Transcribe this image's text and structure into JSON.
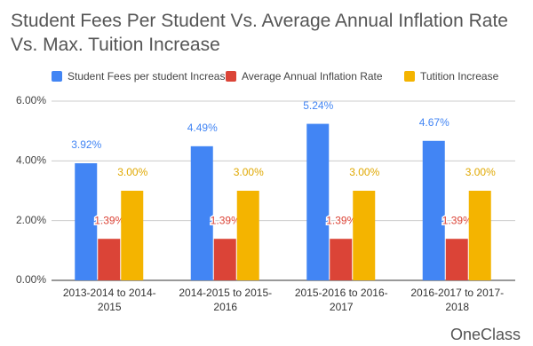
{
  "chart_data": {
    "type": "bar",
    "title": "Student Fees Per Student Vs. Average Annual Inflation Rate Vs. Max. Tuition Increase",
    "categories": [
      "2013-2014 to 2014-2015",
      "2014-2015 to 2015-2016",
      "2015-2016 to 2016-2017",
      "2016-2017 to 2017-2018"
    ],
    "series": [
      {
        "name": "Student Fees per student Increase",
        "color": "#4285f4",
        "values": [
          3.92,
          4.49,
          5.24,
          4.67
        ],
        "value_labels": [
          "3.92%",
          "4.49%",
          "5.24%",
          "4.67%"
        ]
      },
      {
        "name": "Average Annual Inflation Rate",
        "color": "#db4437",
        "values": [
          1.39,
          1.39,
          1.39,
          1.39
        ],
        "value_labels": [
          "1.39%",
          "1.39%",
          "1.39%",
          "1.39%"
        ]
      },
      {
        "name": "Tutition Increase",
        "color": "#f4b400",
        "values": [
          3.0,
          3.0,
          3.0,
          3.0
        ],
        "value_labels": [
          "3.00%",
          "3.00%",
          "3.00%",
          "3.00%"
        ]
      }
    ],
    "ylim": [
      0,
      6
    ],
    "yticks": [
      {
        "value": 0,
        "label": "0.00%"
      },
      {
        "value": 2,
        "label": "2.00%"
      },
      {
        "value": 4,
        "label": "4.00%"
      },
      {
        "value": 6,
        "label": "6.00%"
      }
    ],
    "grid": true,
    "legend": "top",
    "watermark": "OneClass"
  }
}
